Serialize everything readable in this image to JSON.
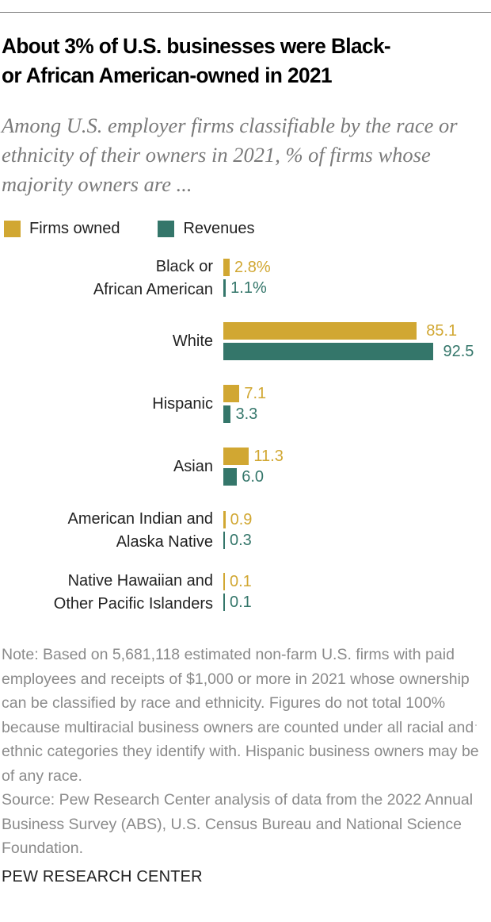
{
  "title": "About 3% of U.S. businesses were Black- or African American-owned in 2021",
  "title_lines": [
    "About 3% of U.S. businesses were Black-",
    "or African American-owned in 2021"
  ],
  "subtitle": "Among U.S. employer firms classifiable by the race or ethnicity of their owners in 2021, % of firms whose majority owners are ...",
  "legend": {
    "firms_label": "Firms owned",
    "revenues_label": "Revenues"
  },
  "colors": {
    "firms": "#D1A732",
    "revenues": "#34766A",
    "firms_text": "#D1A732",
    "revenues_text": "#34766A"
  },
  "rows": [
    {
      "label_lines": [
        "Black or",
        "African American"
      ],
      "firms": 2.8,
      "revenues": 1.1,
      "firms_label": "2.8%",
      "revenues_label": "1.1%"
    },
    {
      "label_lines": [
        "White"
      ],
      "firms": 85.1,
      "revenues": 92.5,
      "firms_label": "85.1",
      "revenues_label": "92.5"
    },
    {
      "label_lines": [
        "Hispanic"
      ],
      "firms": 7.1,
      "revenues": 3.3,
      "firms_label": "7.1",
      "revenues_label": "3.3"
    },
    {
      "label_lines": [
        "Asian"
      ],
      "firms": 11.3,
      "revenues": 6.0,
      "firms_label": "11.3",
      "revenues_label": "6.0"
    },
    {
      "label_lines": [
        "American Indian and",
        "Alaska Native"
      ],
      "firms": 0.9,
      "revenues": 0.3,
      "firms_label": "0.9",
      "revenues_label": "0.3"
    },
    {
      "label_lines": [
        "Native Hawaiian and",
        "Other Pacific Islanders"
      ],
      "firms": 0.1,
      "revenues": 0.1,
      "firms_label": "0.1",
      "revenues_label": "0.1"
    }
  ],
  "note": "Note: Based on 5,681,118 estimated non-farm U.S. firms with paid employees and receipts of $1,000 or more in 2021 whose ownership can be classified by race and ethnicity. Figures do not total 100% because multiracial business owners are counted under all racial and ethnic categories they identify with. Hispanic business owners may be of any race.",
  "source": "Source: Pew Research Center analysis of data from the 2022 Annual Business Survey (ABS), U.S. Census Bureau and National Science Foundation.",
  "footer": "PEW RESEARCH CENTER",
  "chart_data": {
    "type": "bar",
    "orientation": "horizontal",
    "title": "About 3% of U.S. businesses were Black- or African American-owned in 2021",
    "subtitle": "Among U.S. employer firms classifiable by the race or ethnicity of their owners in 2021, % of firms whose majority owners are ...",
    "categories": [
      "Black or African American",
      "White",
      "Hispanic",
      "Asian",
      "American Indian and Alaska Native",
      "Native Hawaiian and Other Pacific Islanders"
    ],
    "series": [
      {
        "name": "Firms owned",
        "color": "#D1A732",
        "values": [
          2.8,
          85.1,
          7.1,
          11.3,
          0.9,
          0.1
        ]
      },
      {
        "name": "Revenues",
        "color": "#34766A",
        "values": [
          1.1,
          92.5,
          3.3,
          6.0,
          0.3,
          0.1
        ]
      }
    ],
    "xlabel": "",
    "ylabel": "",
    "unit": "%",
    "xlim": [
      0,
      100
    ],
    "grid": false,
    "legend_position": "top-left",
    "data_labels": true
  }
}
